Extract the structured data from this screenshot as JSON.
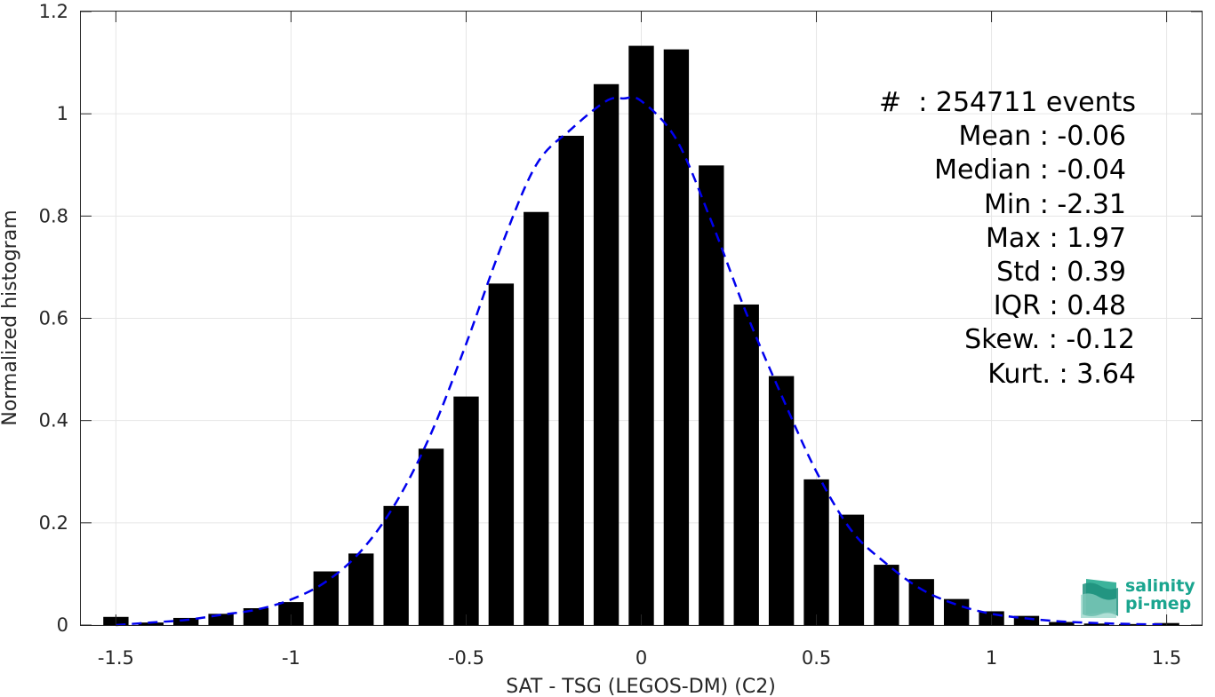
{
  "chart_data": {
    "type": "bar",
    "xlabel": "SAT - TSG (LEGOS-DM) (C2)",
    "ylabel": "Normalized histogram",
    "xlim": [
      -1.6,
      1.6
    ],
    "ylim": [
      0,
      1.2
    ],
    "grid": true,
    "x_ticks": [
      "-1.5",
      "-1",
      "-0.5",
      "0",
      "0.5",
      "1",
      "1.5"
    ],
    "y_ticks": [
      "0",
      "0.2",
      "0.4",
      "0.6",
      "0.8",
      "1",
      "1.2"
    ],
    "bar_color": "#000000",
    "bins": [
      -1.5,
      -1.4,
      -1.3,
      -1.2,
      -1.1,
      -1.0,
      -0.9,
      -0.8,
      -0.7,
      -0.6,
      -0.5,
      -0.4,
      -0.3,
      -0.2,
      -0.1,
      0.0,
      0.1,
      0.2,
      0.3,
      0.4,
      0.5,
      0.6,
      0.7,
      0.8,
      0.9,
      1.0,
      1.1,
      1.2,
      1.3,
      1.4,
      1.5
    ],
    "values": [
      0.016,
      0.005,
      0.014,
      0.022,
      0.033,
      0.045,
      0.105,
      0.14,
      0.233,
      0.345,
      0.447,
      0.668,
      0.808,
      0.957,
      1.058,
      1.133,
      1.126,
      0.899,
      0.627,
      0.487,
      0.285,
      0.216,
      0.118,
      0.09,
      0.051,
      0.027,
      0.018,
      0.006,
      0.003,
      0.002,
      0.004
    ],
    "fit_curve": {
      "style": "dashed",
      "color": "#0000ee",
      "x": [
        -1.5,
        -1.4,
        -1.3,
        -1.2,
        -1.1,
        -1.0,
        -0.9,
        -0.8,
        -0.7,
        -0.6,
        -0.5,
        -0.4,
        -0.3,
        -0.2,
        -0.1,
        -0.05,
        0.0,
        0.1,
        0.2,
        0.3,
        0.4,
        0.5,
        0.6,
        0.7,
        0.8,
        0.9,
        1.0,
        1.1,
        1.2,
        1.3,
        1.4,
        1.5
      ],
      "y": [
        0.0,
        0.005,
        0.01,
        0.02,
        0.03,
        0.05,
        0.085,
        0.145,
        0.24,
        0.375,
        0.55,
        0.74,
        0.9,
        0.97,
        1.025,
        1.03,
        1.025,
        0.95,
        0.79,
        0.61,
        0.45,
        0.3,
        0.185,
        0.12,
        0.07,
        0.04,
        0.022,
        0.013,
        0.007,
        0.004,
        0.002,
        0.001
      ]
    }
  },
  "stats": [
    {
      "label": "#  : 254711 events"
    },
    {
      "label": "Mean : -0.06"
    },
    {
      "label": "Median : -0.04"
    },
    {
      "label": "Min : -2.31"
    },
    {
      "label": "Max : 1.97"
    },
    {
      "label": "Std : 0.39"
    },
    {
      "label": "IQR : 0.48"
    },
    {
      "label": "Skew. : -0.12"
    },
    {
      "label": "Kurt. : 3.64"
    }
  ],
  "logo": {
    "name": "salinity-pi-mep-logo",
    "line1": "salinity",
    "line2": "pi-mep",
    "color": "#1aa58f"
  }
}
